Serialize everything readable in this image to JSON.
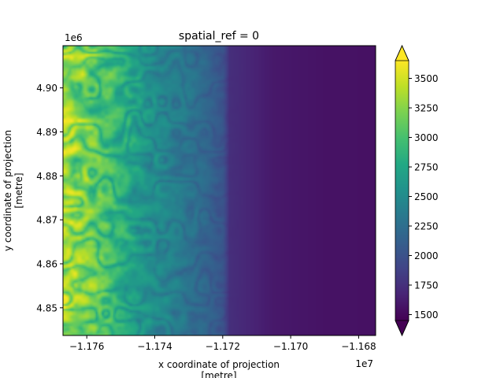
{
  "chart_data": {
    "type": "heatmap",
    "title": "spatial_ref = 0",
    "xlabel": "x coordinate of projection\n[metre]",
    "ylabel": "y coordinate of projection\n[metre]",
    "x_offset_label": "1e7",
    "y_offset_label": "1e6",
    "xlim": [
      -1.1767,
      -1.1675
    ],
    "ylim": [
      4.8437,
      4.9096
    ],
    "x_ticks": [
      -1.176,
      -1.174,
      -1.172,
      -1.17,
      -1.168
    ],
    "x_tick_labels": [
      "−1.176",
      "−1.174",
      "−1.172",
      "−1.170",
      "−1.168"
    ],
    "y_ticks": [
      4.85,
      4.86,
      4.87,
      4.88,
      4.89,
      4.9
    ],
    "y_tick_labels": [
      "4.85",
      "4.86",
      "4.87",
      "4.88",
      "4.89",
      "4.90"
    ],
    "colorbar": {
      "colormap": "viridis",
      "vmin": 1450,
      "vmax": 3650,
      "extend": "both",
      "ticks": [
        1500,
        1750,
        2000,
        2250,
        2500,
        2750,
        3000,
        3250,
        3500
      ],
      "tick_labels": [
        "1500",
        "1750",
        "2000",
        "2250",
        "2500",
        "2750",
        "3000",
        "3250",
        "3500"
      ]
    },
    "description_profile": [
      {
        "x": -1.1767,
        "value": 3500
      },
      {
        "x": -1.176,
        "value": 3350
      },
      {
        "x": -1.1752,
        "value": 3050
      },
      {
        "x": -1.1745,
        "value": 2750
      },
      {
        "x": -1.1735,
        "value": 2450
      },
      {
        "x": -1.1728,
        "value": 2300
      },
      {
        "x": -1.172,
        "value": 2050
      },
      {
        "x": -1.1718,
        "value": 1750
      },
      {
        "x": -1.1705,
        "value": 1600
      },
      {
        "x": -1.169,
        "value": 1560
      },
      {
        "x": -1.1675,
        "value": 1550
      }
    ]
  }
}
